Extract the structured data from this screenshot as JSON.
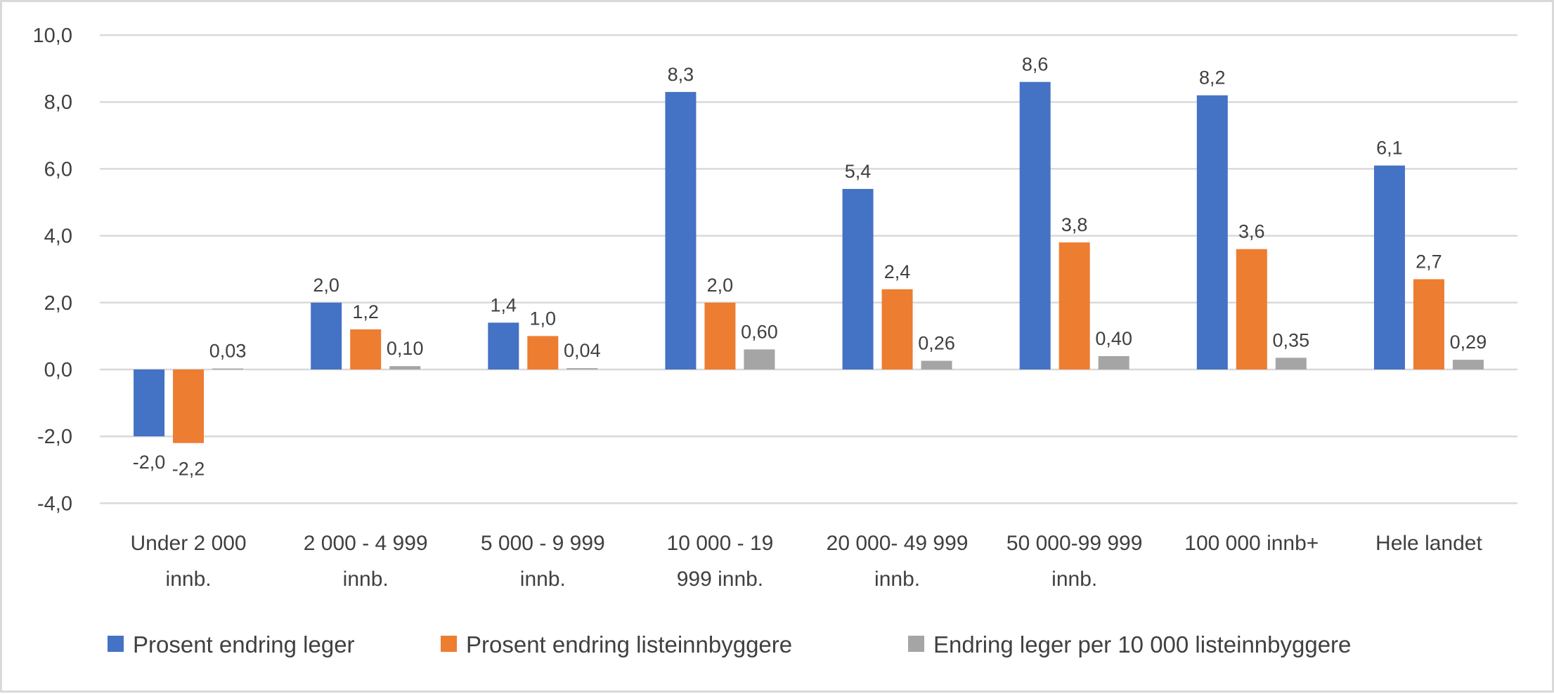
{
  "chart_data": {
    "type": "bar",
    "title": "",
    "xlabel": "",
    "ylabel": "",
    "ylim": [
      -4,
      10
    ],
    "y_ticks": [
      -4,
      -2,
      0,
      2,
      4,
      6,
      8,
      10
    ],
    "y_tick_labels": [
      "-4,0",
      "-2,0",
      "0,0",
      "2,0",
      "4,0",
      "6,0",
      "8,0",
      "10,0"
    ],
    "grid": true,
    "legend_position": "bottom",
    "categories": [
      [
        "Under 2 000",
        "innb."
      ],
      [
        "2 000 - 4 999",
        "innb."
      ],
      [
        "5 000 - 9 999",
        "innb."
      ],
      [
        "10 000 - 19",
        "999 innb."
      ],
      [
        "20 000- 49 999",
        "innb."
      ],
      [
        "50 000-99 999",
        "innb."
      ],
      [
        "100 000 innb+"
      ],
      [
        "Hele landet"
      ]
    ],
    "series": [
      {
        "name": "Prosent endring leger",
        "color": "#4472c4",
        "values": [
          -2.0,
          2.0,
          1.4,
          8.3,
          5.4,
          8.6,
          8.2,
          6.1
        ],
        "labels": [
          "-2,0",
          "2,0",
          "1,4",
          "8,3",
          "5,4",
          "8,6",
          "8,2",
          "6,1"
        ]
      },
      {
        "name": "Prosent endring listeinnbyggere",
        "color": "#ed7d31",
        "values": [
          -2.2,
          1.2,
          1.0,
          2.0,
          2.4,
          3.8,
          3.6,
          2.7
        ],
        "labels": [
          "-2,2",
          "1,2",
          "1,0",
          "2,0",
          "2,4",
          "3,8",
          "3,6",
          "2,7"
        ]
      },
      {
        "name": "Endring leger per 10 000 listeinnbyggere",
        "color": "#a5a5a5",
        "values": [
          0.03,
          0.1,
          0.04,
          0.6,
          0.26,
          0.4,
          0.35,
          0.29
        ],
        "labels": [
          "0,03",
          "0,10",
          "0,04",
          "0,60",
          "0,26",
          "0,40",
          "0,35",
          "0,29"
        ]
      }
    ]
  }
}
